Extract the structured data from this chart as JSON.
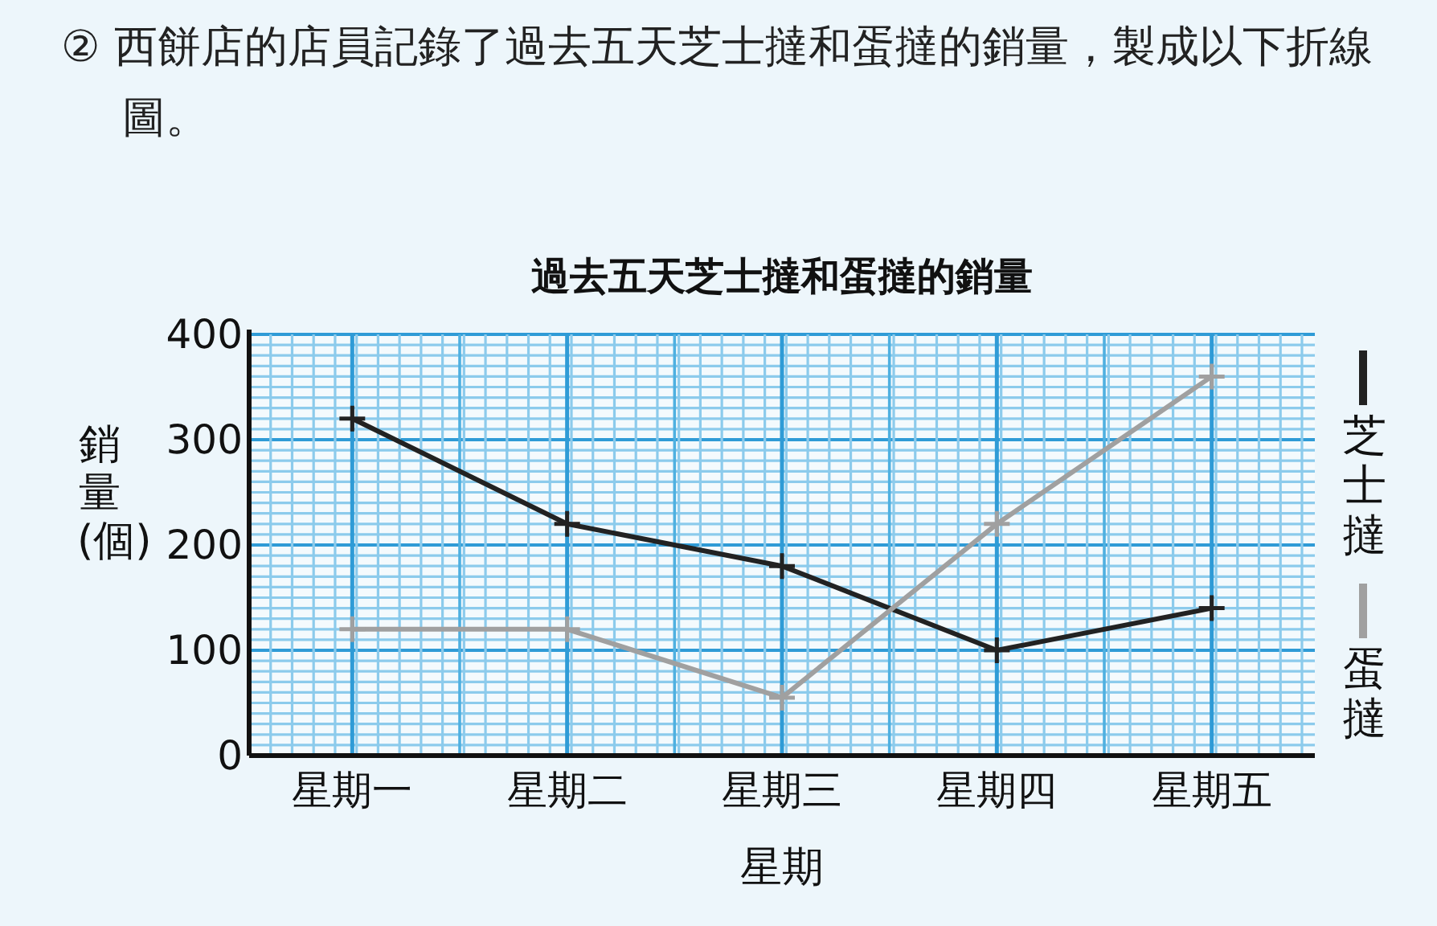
{
  "chart_data": {
    "type": "line",
    "title": "過去五天芝士撻和蛋撻的銷量",
    "annotations": [
      "② 西餅店的店員記錄了過去五天芝士撻和蛋撻的銷量，製成以下折線圖。"
    ],
    "xlabel": "星期",
    "ylabel": "銷量(個)",
    "categories": [
      "星期一",
      "星期二",
      "星期三",
      "星期四",
      "星期五"
    ],
    "series": [
      {
        "name": "芝士撻",
        "color": "#222222",
        "values": [
          320,
          220,
          180,
          100,
          140
        ]
      },
      {
        "name": "蛋撻",
        "color": "#a0a0a0",
        "values": [
          120,
          120,
          55,
          220,
          360
        ]
      }
    ],
    "ylim": [
      0,
      400
    ],
    "yticks": [
      0,
      100,
      200,
      300,
      400
    ],
    "grid": true,
    "legend": "right",
    "marker": "cross",
    "line_style": "solid"
  }
}
